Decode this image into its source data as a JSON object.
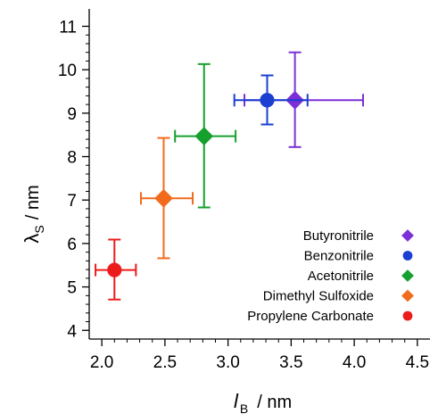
{
  "chart_data": {
    "type": "scatter",
    "xlabel": "l",
    "xlabel_sub": "B",
    "xlabel_unit": "/ nm",
    "ylabel": "λ",
    "ylabel_sub": "S",
    "ylabel_unit": "/ nm",
    "xlim": [
      1.9,
      4.6
    ],
    "ylim": [
      3.8,
      11.4
    ],
    "xticks": [
      "2.0",
      "2.5",
      "3.0",
      "3.5",
      "4.0",
      "4.5"
    ],
    "yticks": [
      "4",
      "5",
      "6",
      "7",
      "8",
      "9",
      "10",
      "11"
    ],
    "legend_position": "bottom-right",
    "grid": false,
    "series": [
      {
        "name": "Butyronitrile",
        "marker": "diamond",
        "color": "#7b2fd6",
        "x": 3.53,
        "y": 9.3,
        "xerr_low": 3.13,
        "xerr_high": 4.07,
        "yerr_low": 8.22,
        "yerr_high": 10.4
      },
      {
        "name": "Benzonitrile",
        "marker": "circle",
        "color": "#1a3fd1",
        "x": 3.31,
        "y": 9.3,
        "xerr_low": 3.05,
        "xerr_high": 3.63,
        "yerr_low": 8.74,
        "yerr_high": 9.87
      },
      {
        "name": "Acetonitrile",
        "marker": "diamond",
        "color": "#16a02e",
        "x": 2.81,
        "y": 8.47,
        "xerr_low": 2.58,
        "xerr_high": 3.06,
        "yerr_low": 6.83,
        "yerr_high": 10.13
      },
      {
        "name": "Dimethyl Sulfoxide",
        "marker": "diamond",
        "color": "#f26a1b",
        "x": 2.49,
        "y": 7.04,
        "xerr_low": 2.31,
        "xerr_high": 2.72,
        "yerr_low": 5.66,
        "yerr_high": 8.43
      },
      {
        "name": "Propylene Carbonate",
        "marker": "circle",
        "color": "#ec1c1c",
        "x": 2.1,
        "y": 5.39,
        "xerr_low": 1.95,
        "xerr_high": 2.27,
        "yerr_low": 4.71,
        "yerr_high": 6.09
      }
    ]
  }
}
